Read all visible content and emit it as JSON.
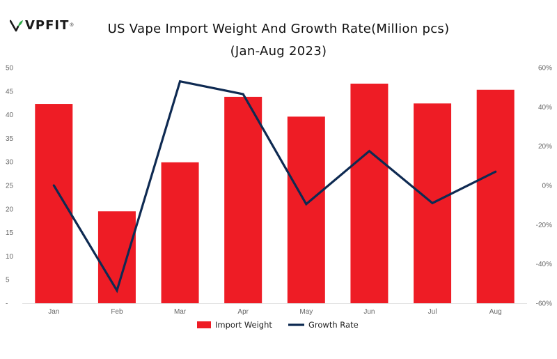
{
  "brand": {
    "name": "VPFIT",
    "reg_mark": "®",
    "colors": {
      "green": "#2aa843",
      "dark": "#1a1a1a"
    }
  },
  "chart_data": {
    "type": "bar+line",
    "title": "US Vape Import Weight And Growth Rate(Million pcs)",
    "subtitle": "(Jan-Aug 2023)",
    "categories": [
      "Jan",
      "Feb",
      "Mar",
      "Apr",
      "May",
      "Jun",
      "Jul",
      "Aug"
    ],
    "series": [
      {
        "name": "Import Weight",
        "type": "bar",
        "axis": "left",
        "color": "#ee1c25",
        "values": [
          42.3,
          19.5,
          29.9,
          43.8,
          39.6,
          46.6,
          42.4,
          45.3
        ]
      },
      {
        "name": "Growth Rate",
        "type": "line",
        "axis": "right",
        "color": "#0e2a52",
        "values": [
          0,
          -53.5,
          53,
          46.5,
          -9.5,
          17.5,
          -9,
          7
        ]
      }
    ],
    "y_left": {
      "min": 0,
      "max": 50,
      "ticks": [
        "-",
        "5",
        "10",
        "15",
        "20",
        "25",
        "30",
        "35",
        "40",
        "45",
        "50"
      ]
    },
    "y_right": {
      "min": -60,
      "max": 60,
      "ticks": [
        "-60%",
        "-40%",
        "-20%",
        "0%",
        "20%",
        "40%",
        "60%"
      ]
    },
    "grid": false,
    "legend": "bottom-center"
  }
}
